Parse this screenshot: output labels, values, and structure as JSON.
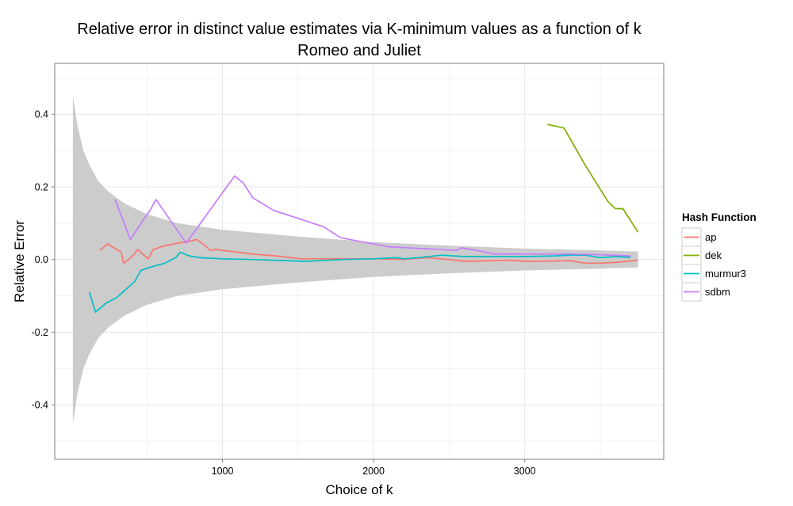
{
  "chart_data": {
    "type": "line",
    "title": "Relative error in distinct value estimates via K-minimum values as a function of k",
    "subtitle": "Romeo and Juliet",
    "xlabel": "Choice of k",
    "ylabel": "Relative Error",
    "xlim": [
      -110,
      3920
    ],
    "ylim": [
      -0.55,
      0.54
    ],
    "x_ticks": [
      1000,
      2000,
      3000
    ],
    "x_tick_labels": [
      "1000",
      "2000",
      "3000"
    ],
    "y_ticks": [
      -0.4,
      -0.2,
      0.0,
      0.2,
      0.4
    ],
    "y_tick_labels": [
      "-0.4",
      "-0.2",
      "0.0",
      "0.2",
      "0.4"
    ],
    "grid": true,
    "legend": {
      "title": "Hash Function",
      "position": "right"
    },
    "ribbon": {
      "x": [
        10,
        40,
        80,
        120,
        180,
        250,
        350,
        500,
        700,
        1000,
        1500,
        2000,
        2500,
        3000,
        3500,
        3750
      ],
      "upper": [
        0.452,
        0.37,
        0.3,
        0.26,
        0.215,
        0.185,
        0.155,
        0.125,
        0.1,
        0.082,
        0.063,
        0.048,
        0.038,
        0.03,
        0.025,
        0.022
      ]
    },
    "series": [
      {
        "name": "ap",
        "color": "#F8766D",
        "x": [
          190,
          240,
          330,
          345,
          380,
          410,
          440,
          480,
          510,
          540,
          600,
          700,
          780,
          830,
          880,
          920,
          960,
          1000,
          1100,
          1200,
          1350,
          1520,
          1700,
          2000,
          2200,
          2350,
          2500,
          2600,
          2800,
          2900,
          3000,
          3100,
          3300,
          3400,
          3500,
          3600,
          3700,
          3750
        ],
        "y": [
          0.025,
          0.043,
          0.02,
          -0.01,
          0.0,
          0.012,
          0.028,
          0.012,
          0.002,
          0.027,
          0.036,
          0.045,
          0.05,
          0.055,
          0.04,
          0.025,
          0.028,
          0.025,
          0.02,
          0.015,
          0.01,
          0.002,
          0.002,
          0.002,
          0.0,
          0.005,
          0.0,
          -0.005,
          -0.003,
          -0.002,
          -0.005,
          -0.005,
          -0.003,
          -0.01,
          -0.01,
          -0.008,
          -0.004,
          -0.002
        ]
      },
      {
        "name": "dek",
        "color": "#7CAE00",
        "x": [
          3150,
          3260,
          3400,
          3550,
          3600,
          3650,
          3750
        ],
        "y": [
          0.372,
          0.362,
          0.26,
          0.16,
          0.14,
          0.14,
          0.075
        ]
      },
      {
        "name": "murmur3",
        "color": "#00BFC4",
        "x": [
          120,
          160,
          230,
          300,
          340,
          380,
          420,
          460,
          530,
          620,
          690,
          720,
          780,
          850,
          1000,
          1200,
          1550,
          1800,
          2000,
          2150,
          2200,
          2300,
          2450,
          2600,
          2700,
          2850,
          3000,
          3200,
          3300,
          3400,
          3500,
          3600,
          3700
        ],
        "y": [
          -0.09,
          -0.145,
          -0.12,
          -0.105,
          -0.09,
          -0.075,
          -0.06,
          -0.03,
          -0.02,
          -0.01,
          0.005,
          0.02,
          0.01,
          0.005,
          0.002,
          0.0,
          -0.005,
          0.0,
          0.002,
          0.005,
          0.002,
          0.005,
          0.012,
          0.008,
          0.008,
          0.008,
          0.008,
          0.01,
          0.012,
          0.012,
          0.005,
          0.008,
          0.006
        ]
      },
      {
        "name": "sdbm",
        "color": "#C77CFF",
        "x": [
          290,
          390,
          470,
          520,
          560,
          760,
          1080,
          1140,
          1200,
          1340,
          1670,
          1780,
          2100,
          2550,
          2580,
          2680,
          2800,
          3000,
          3300,
          3500,
          3700
        ],
        "y": [
          0.165,
          0.055,
          0.105,
          0.135,
          0.165,
          0.045,
          0.23,
          0.21,
          0.17,
          0.135,
          0.09,
          0.06,
          0.035,
          0.025,
          0.032,
          0.025,
          0.015,
          0.015,
          0.015,
          0.013,
          0.01
        ]
      }
    ]
  }
}
